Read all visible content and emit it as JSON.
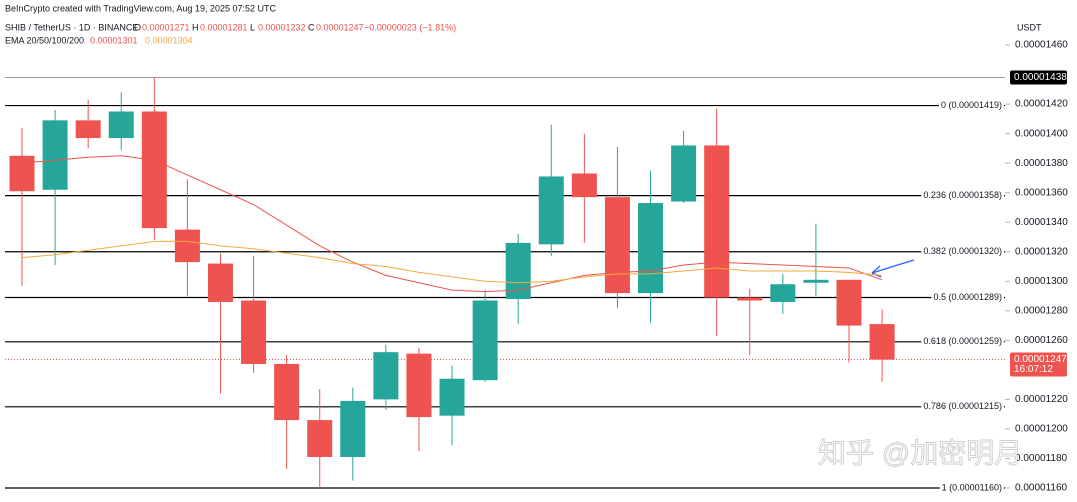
{
  "chart_data": {
    "type": "candlestick",
    "header": {
      "credit": "BeInCrypto created with TradingView.com, Aug 19, 2025 07:52 UTC",
      "symbol": "SHIB / TetherUS · 1D · BINANCE",
      "ohlc": [
        {
          "key": "O",
          "value": "0.00001271"
        },
        {
          "key": "H",
          "value": "0.00001281"
        },
        {
          "key": "L",
          "value": "0.00001232"
        },
        {
          "key": "C",
          "value": "0.00001247"
        }
      ],
      "change": "−0.00000023 (−1.81%)",
      "ema_label": "EMA 20/50/100/200",
      "ema_values": [
        "0.00001301",
        "0.00001304"
      ]
    },
    "currency": "USDT",
    "watermark": "知乎 @加密明月",
    "up_color": "#26a69a",
    "down_color": "#ef5350",
    "open": [
      1.385e-05,
      1.362e-05,
      1.409e-05,
      1.397e-05,
      1.415e-05,
      1.335e-05,
      1.312e-05,
      1.287e-05,
      1.244e-05,
      1.206e-05,
      1.181e-05,
      1.22e-05,
      1.251e-05,
      1.209e-05,
      1.233e-05,
      1.288e-05,
      1.325e-05,
      1.373e-05,
      1.357e-05,
      1.292e-05,
      1.354e-05,
      1.392e-05,
      1.289e-05,
      1.286e-05,
      1.299e-05,
      1.301e-05,
      1.271e-05
    ],
    "high": [
      1.404e-05,
      1.416e-05,
      1.423e-05,
      1.428e-05,
      1.438e-05,
      1.369e-05,
      1.319e-05,
      1.317e-05,
      1.25e-05,
      1.227e-05,
      1.228e-05,
      1.257e-05,
      1.255e-05,
      1.243e-05,
      1.294e-05,
      1.332e-05,
      1.406e-05,
      1.4e-05,
      1.391e-05,
      1.375e-05,
      1.402e-05,
      1.417e-05,
      1.295e-05,
      1.305e-05,
      1.339e-05,
      1.301e-05,
      1.281e-05
    ],
    "low": [
      1.297e-05,
      1.311e-05,
      1.39e-05,
      1.389e-05,
      1.328e-05,
      1.29e-05,
      1.224e-05,
      1.238e-05,
      1.173e-05,
      1.16e-05,
      1.165e-05,
      1.213e-05,
      1.185e-05,
      1.189e-05,
      1.232e-05,
      1.271e-05,
      1.317e-05,
      1.326e-05,
      1.282e-05,
      1.272e-05,
      1.353e-05,
      1.263e-05,
      1.25e-05,
      1.278e-05,
      1.29e-05,
      1.245e-05,
      1.232e-05
    ],
    "close": [
      1.361e-05,
      1.409e-05,
      1.397e-05,
      1.415e-05,
      1.336e-05,
      1.313e-05,
      1.286e-05,
      1.244e-05,
      1.206e-05,
      1.181e-05,
      1.219e-05,
      1.252e-05,
      1.208e-05,
      1.234e-05,
      1.287e-05,
      1.326e-05,
      1.371e-05,
      1.357e-05,
      1.292e-05,
      1.353e-05,
      1.392e-05,
      1.289e-05,
      1.287e-05,
      1.298e-05,
      1.301e-05,
      1.27e-05,
      1.247e-05
    ],
    "lines": [
      {
        "color": "#ef5350",
        "values": [
          1.38e-05,
          1.382e-05,
          1.384e-05,
          1.385e-05,
          1.382e-05,
          1.372e-05,
          1.362e-05,
          1.352e-05,
          1.338e-05,
          1.324e-05,
          1.313e-05,
          1.304e-05,
          1.299e-05,
          1.294e-05,
          1.293e-05,
          1.294e-05,
          1.299e-05,
          1.304e-05,
          1.306e-05,
          1.307e-05,
          1.311e-05,
          1.313e-05,
          1.312e-05,
          1.311e-05,
          1.31e-05,
          1.309e-05,
          1.301e-05
        ]
      },
      {
        "color": "#f6a93b",
        "values": [
          1.316e-05,
          1.318e-05,
          1.321e-05,
          1.324e-05,
          1.327e-05,
          1.327e-05,
          1.324e-05,
          1.322e-05,
          1.319e-05,
          1.316e-05,
          1.312e-05,
          1.31e-05,
          1.306e-05,
          1.303e-05,
          1.3e-05,
          1.299e-05,
          1.3e-05,
          1.303e-05,
          1.305e-05,
          1.305e-05,
          1.307e-05,
          1.309e-05,
          1.307e-05,
          1.307e-05,
          1.307e-05,
          1.306e-05,
          1.304e-05
        ]
      }
    ],
    "fib_levels": [
      {
        "value": 1.419e-05,
        "label": "0 (0.00001419)"
      },
      {
        "value": 1.358e-05,
        "label": "0.236 (0.00001358)"
      },
      {
        "value": 1.32e-05,
        "label": "0.382 (0.00001320)"
      },
      {
        "value": 1.289e-05,
        "label": "0.5 (0.00001289)"
      },
      {
        "value": 1.259e-05,
        "label": "0.618 (0.00001259)"
      },
      {
        "value": 1.215e-05,
        "label": "0.786 (0.00001215)"
      },
      {
        "value": 1.16e-05,
        "label": "1 (0.00001160)"
      }
    ],
    "high_marker": {
      "value": 1.438e-05,
      "label": "0.00001438"
    },
    "last_price": {
      "value": 1.247e-05,
      "label": "0.00001247",
      "countdown": "16:07:12"
    },
    "ylim": [
      1.16e-05,
      1.49e-05
    ],
    "yticks": [
      {
        "value": 1.46e-05,
        "label": "0.00001460"
      },
      {
        "value": 1.42e-05,
        "label": "0.00001420"
      },
      {
        "value": 1.4e-05,
        "label": "0.00001400"
      },
      {
        "value": 1.38e-05,
        "label": "0.00001380"
      },
      {
        "value": 1.36e-05,
        "label": "0.00001360"
      },
      {
        "value": 1.34e-05,
        "label": "0.00001340"
      },
      {
        "value": 1.32e-05,
        "label": "0.00001320"
      },
      {
        "value": 1.3e-05,
        "label": "0.00001300"
      },
      {
        "value": 1.28e-05,
        "label": "0.00001280"
      },
      {
        "value": 1.26e-05,
        "label": "0.00001260"
      },
      {
        "value": 1.22e-05,
        "label": "0.00001220"
      },
      {
        "value": 1.2e-05,
        "label": "0.00001200"
      },
      {
        "value": 1.18e-05,
        "label": "0.00001180"
      },
      {
        "value": 1.16e-05,
        "label": "0.00001160"
      }
    ]
  }
}
